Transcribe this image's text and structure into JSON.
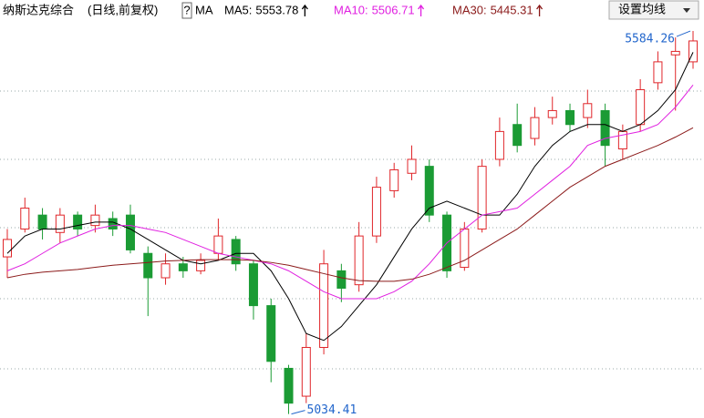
{
  "chart_data": {
    "type": "candlestick",
    "title": "纳斯达克综合",
    "subtitle": "(日线,前复权)",
    "help_icon": "?",
    "indicator": "MA",
    "button": "设置均线",
    "ylim": [
      5030,
      5600
    ],
    "up_color": "#e0262a",
    "down_color": "#1b9b34",
    "open": [
      5260,
      5300,
      5320,
      5295,
      5320,
      5305,
      5315,
      5320,
      5265,
      5230,
      5250,
      5240,
      5265,
      5285,
      5250,
      5190,
      5100,
      5060,
      5130,
      5240,
      5220,
      5290,
      5355,
      5380,
      5390,
      5320,
      5245,
      5300,
      5400,
      5450,
      5430,
      5460,
      5470,
      5460,
      5470,
      5415,
      5450,
      5510,
      5550,
      5540
    ],
    "high": [
      5300,
      5345,
      5330,
      5330,
      5325,
      5335,
      5325,
      5335,
      5275,
      5265,
      5260,
      5265,
      5315,
      5290,
      5255,
      5200,
      5105,
      5150,
      5270,
      5250,
      5310,
      5375,
      5395,
      5420,
      5400,
      5325,
      5310,
      5400,
      5460,
      5480,
      5475,
      5490,
      5480,
      5500,
      5480,
      5450,
      5515,
      5555,
      5575,
      5584.26
    ],
    "low": [
      5230,
      5295,
      5285,
      5280,
      5290,
      5295,
      5290,
      5265,
      5175,
      5220,
      5230,
      5235,
      5255,
      5240,
      5170,
      5080,
      5034.41,
      5050,
      5120,
      5195,
      5210,
      5280,
      5345,
      5370,
      5310,
      5230,
      5240,
      5295,
      5390,
      5410,
      5420,
      5450,
      5440,
      5445,
      5390,
      5400,
      5440,
      5500,
      5470,
      5530
    ],
    "close": [
      5285,
      5330,
      5300,
      5320,
      5300,
      5320,
      5300,
      5270,
      5230,
      5250,
      5240,
      5255,
      5290,
      5250,
      5190,
      5110,
      5050,
      5130,
      5250,
      5215,
      5290,
      5360,
      5385,
      5400,
      5320,
      5240,
      5300,
      5390,
      5440,
      5420,
      5460,
      5470,
      5450,
      5480,
      5420,
      5440,
      5500,
      5540,
      5555,
      5570
    ],
    "series": [
      {
        "name": "MA5:",
        "color": "#000000",
        "values": [
          5265,
          5290,
          5300,
          5300,
          5305,
          5310,
          5310,
          5300,
          5285,
          5270,
          5255,
          5250,
          5255,
          5265,
          5265,
          5240,
          5200,
          5150,
          5140,
          5160,
          5190,
          5220,
          5260,
          5300,
          5330,
          5340,
          5330,
          5320,
          5320,
          5350,
          5390,
          5420,
          5440,
          5450,
          5450,
          5440,
          5450,
          5470,
          5500,
          5553.78
        ]
      },
      {
        "name": "MA10:",
        "color": "#e020e0",
        "values": [
          5240,
          5250,
          5265,
          5280,
          5290,
          5300,
          5305,
          5305,
          5300,
          5295,
          5285,
          5275,
          5265,
          5260,
          5255,
          5250,
          5240,
          5225,
          5210,
          5200,
          5200,
          5200,
          5210,
          5225,
          5250,
          5280,
          5300,
          5320,
          5325,
          5330,
          5350,
          5370,
          5390,
          5420,
          5430,
          5435,
          5440,
          5450,
          5475,
          5506.71
        ]
      },
      {
        "name": "MA30:",
        "color": "#8b1a1a",
        "values": [
          5230,
          5235,
          5238,
          5240,
          5242,
          5245,
          5248,
          5250,
          5252,
          5254,
          5255,
          5256,
          5256,
          5256,
          5255,
          5252,
          5248,
          5242,
          5236,
          5230,
          5226,
          5225,
          5225,
          5228,
          5235,
          5245,
          5255,
          5270,
          5285,
          5300,
          5320,
          5340,
          5360,
          5375,
          5390,
          5400,
          5410,
          5420,
          5432,
          5445.31
        ]
      }
    ]
  }
}
